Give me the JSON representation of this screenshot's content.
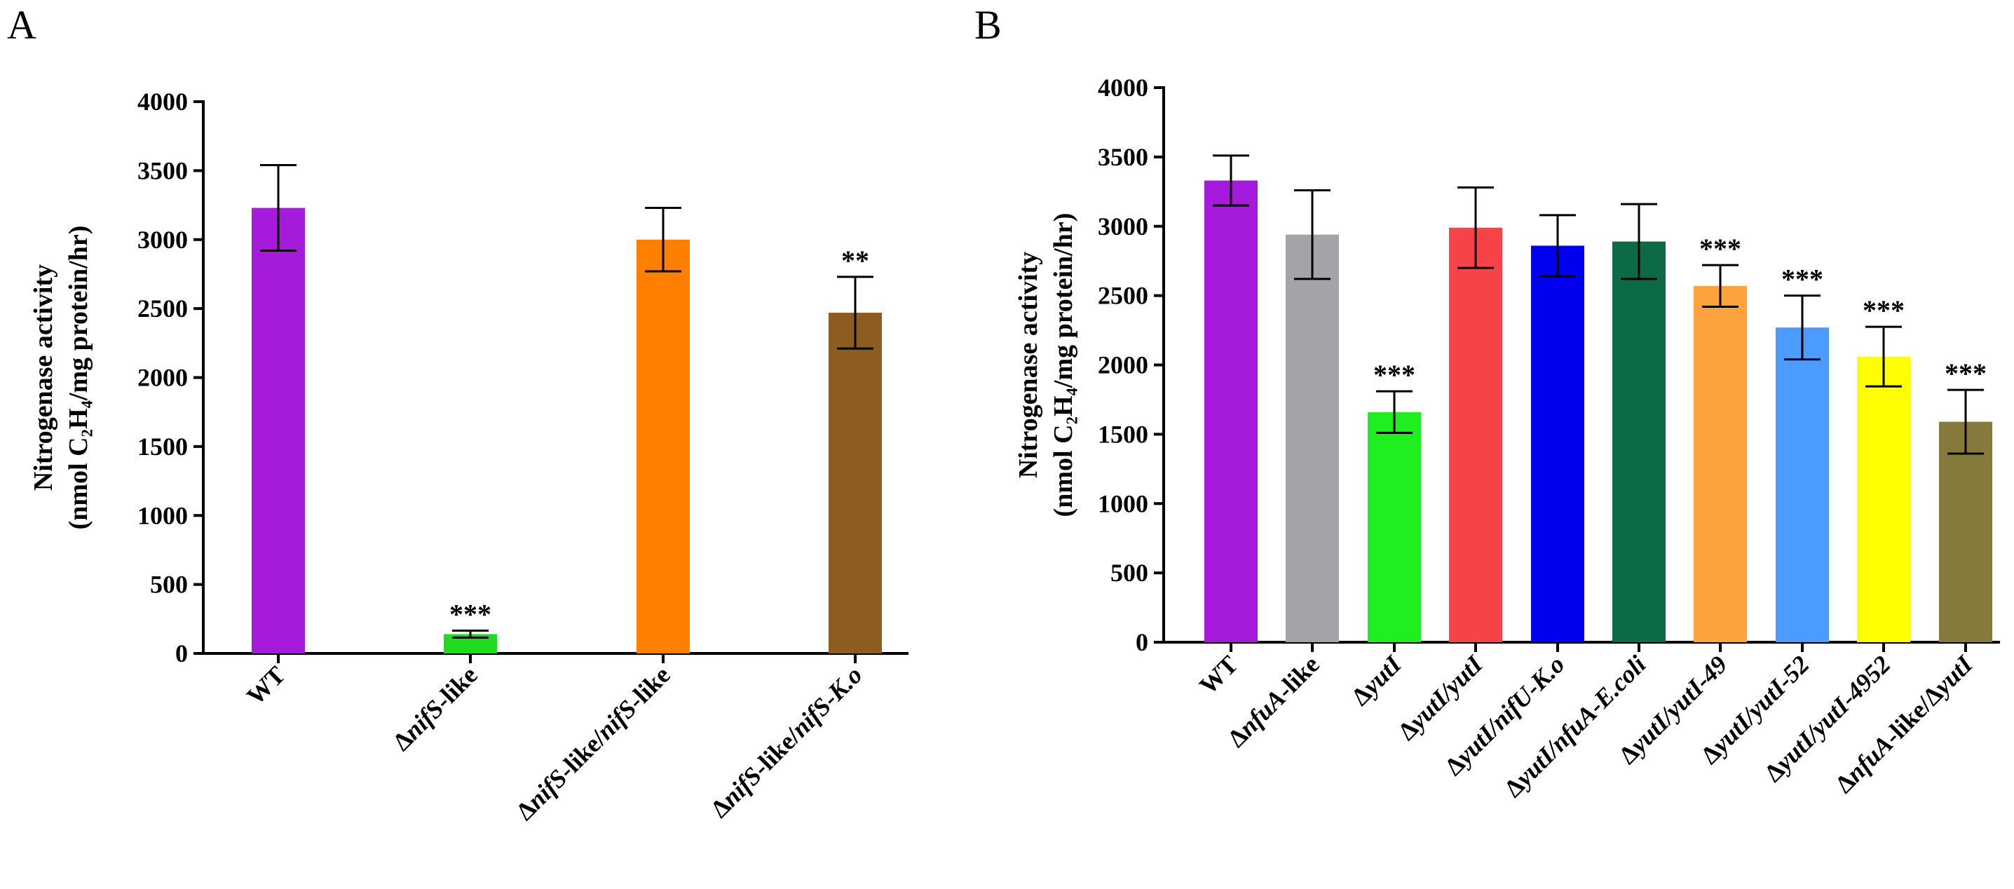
{
  "chart_data": [
    {
      "type": "bar",
      "panel": "A",
      "ylabel_line1": "Nitrogenase activity",
      "ylabel_line2": "(nmol C₂H₄/mg protein/hr)",
      "ylim": [
        0,
        4000
      ],
      "yticks": [
        "0",
        "500",
        "1000",
        "1500",
        "2000",
        "2500",
        "3000",
        "3500",
        "4000"
      ],
      "categories": [
        [
          {
            "t": "WT",
            "i": false
          }
        ],
        [
          {
            "t": "Δ",
            "i": false
          },
          {
            "t": "nifS",
            "i": true
          },
          {
            "t": "-like",
            "i": false
          }
        ],
        [
          {
            "t": "Δ",
            "i": false
          },
          {
            "t": "nifS",
            "i": true
          },
          {
            "t": "-like/",
            "i": false
          },
          {
            "t": "nifS",
            "i": true
          },
          {
            "t": "-like",
            "i": false
          }
        ],
        [
          {
            "t": "Δ",
            "i": false
          },
          {
            "t": "nifS",
            "i": true
          },
          {
            "t": "-like/",
            "i": false
          },
          {
            "t": "nifS",
            "i": true
          },
          {
            "t": "-",
            "i": false
          },
          {
            "t": "K.o",
            "i": true
          }
        ]
      ],
      "values": [
        3230,
        140,
        3000,
        2470
      ],
      "errors": [
        310,
        25,
        230,
        260
      ],
      "colors": [
        "#a61adb",
        "#1fdc1f",
        "#ff7f00",
        "#8e5c1e"
      ],
      "significance": [
        "",
        "***",
        "",
        "**"
      ]
    },
    {
      "type": "bar",
      "panel": "B",
      "ylabel_line1": "Nitrogenase activity",
      "ylabel_line2": "(nmol C₂H₄/mg protein/hr)",
      "ylim": [
        0,
        4000
      ],
      "yticks": [
        "0",
        "500",
        "1000",
        "1500",
        "2000",
        "2500",
        "3000",
        "3500",
        "4000"
      ],
      "categories": [
        [
          {
            "t": "WT",
            "i": false
          }
        ],
        [
          {
            "t": "Δ",
            "i": false
          },
          {
            "t": "nfuA",
            "i": true
          },
          {
            "t": "-like",
            "i": false
          }
        ],
        [
          {
            "t": "Δ",
            "i": false
          },
          {
            "t": "yutI",
            "i": true
          }
        ],
        [
          {
            "t": "Δ",
            "i": false
          },
          {
            "t": "yutI/yutI",
            "i": true
          }
        ],
        [
          {
            "t": "Δ",
            "i": false
          },
          {
            "t": "yutI/nifU",
            "i": true
          },
          {
            "t": "-",
            "i": false
          },
          {
            "t": "K.o",
            "i": true
          }
        ],
        [
          {
            "t": "Δ",
            "i": false
          },
          {
            "t": "yutI/nfuA",
            "i": true
          },
          {
            "t": "-",
            "i": false
          },
          {
            "t": "E.coli",
            "i": true
          }
        ],
        [
          {
            "t": "Δ",
            "i": false
          },
          {
            "t": "yutI/yutI-49",
            "i": true
          }
        ],
        [
          {
            "t": "Δ",
            "i": false
          },
          {
            "t": "yutI/yutI-52",
            "i": true
          }
        ],
        [
          {
            "t": "Δ",
            "i": false
          },
          {
            "t": "yutI/yutI-4952",
            "i": true
          }
        ],
        [
          {
            "t": "Δ",
            "i": false
          },
          {
            "t": "nfuA",
            "i": true
          },
          {
            "t": "-like/Δ",
            "i": false
          },
          {
            "t": "yutI",
            "i": true
          }
        ]
      ],
      "values": [
        3330,
        2940,
        1660,
        2990,
        2860,
        2890,
        2570,
        2270,
        2060,
        1590
      ],
      "errors": [
        180,
        320,
        150,
        290,
        220,
        270,
        150,
        230,
        215,
        230
      ],
      "colors": [
        "#a61adb",
        "#a3a3a8",
        "#1fee1f",
        "#f74247",
        "#0000ee",
        "#0c6b46",
        "#fea23e",
        "#4c9bff",
        "#ffff00",
        "#857a3b"
      ],
      "significance": [
        "",
        "",
        "***",
        "",
        "",
        "",
        "***",
        "***",
        "***",
        "***"
      ]
    }
  ]
}
